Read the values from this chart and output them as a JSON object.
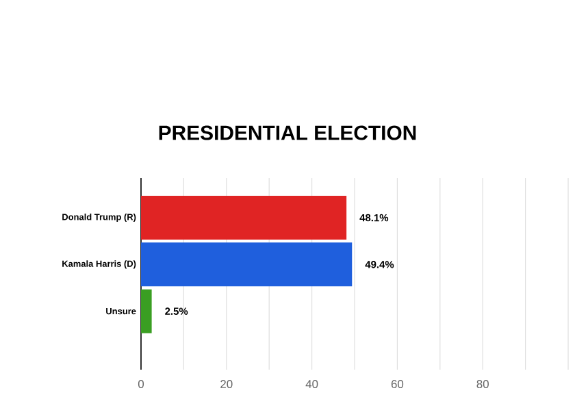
{
  "chart_data": {
    "type": "bar",
    "orientation": "horizontal",
    "title": "PRESIDENTIAL ELECTION",
    "categories": [
      "Donald Trump (R)",
      "Kamala Harris (D)",
      "Unsure"
    ],
    "values": [
      48.1,
      49.4,
      2.5
    ],
    "colors": [
      "#e02424",
      "#1f5fdd",
      "#3a9e22"
    ],
    "value_labels": [
      "48.1%",
      "49.4%",
      "2.5%"
    ],
    "xlim": [
      0,
      100
    ],
    "xticks": [
      0,
      {
        "value": 10,
        "label": null
      },
      20,
      {
        "value": 30,
        "label": null
      },
      40,
      {
        "value": 50,
        "label": null
      },
      60,
      {
        "value": 70,
        "label": null
      },
      80,
      {
        "value": 90,
        "label": null
      },
      {
        "value": 100,
        "label": null
      }
    ],
    "grid": "x"
  }
}
